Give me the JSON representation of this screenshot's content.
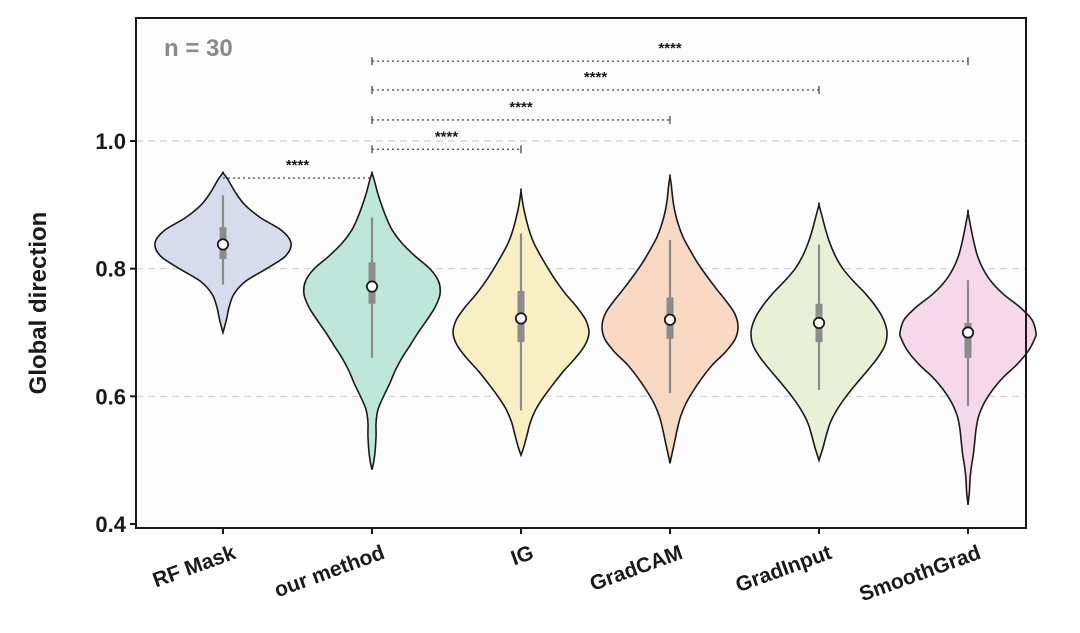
{
  "chart_data": {
    "type": "violin",
    "title": "",
    "xlabel": "",
    "ylabel": "Global direction",
    "ylim": [
      0.4,
      1.2
    ],
    "yticks": [
      0.4,
      0.6,
      0.8,
      1.0
    ],
    "ytick_labels": [
      "0.4",
      "0.6",
      "0.8",
      "1.0"
    ],
    "grid": "horizontal-dashed",
    "annotation": "n = 30",
    "categories": [
      "RF Mask",
      "our method",
      "IG",
      "GradCAM",
      "GradInput",
      "SmoothGrad"
    ],
    "series": [
      {
        "name": "RF Mask",
        "color": "#d6dcec",
        "min": 0.7,
        "max": 0.95,
        "whisker_low": 0.775,
        "whisker_high": 0.915,
        "q1": 0.815,
        "q3": 0.865,
        "median": 0.838,
        "profile": [
          [
            0.7,
            0
          ],
          [
            0.72,
            0.05
          ],
          [
            0.74,
            0.09
          ],
          [
            0.76,
            0.16
          ],
          [
            0.78,
            0.33
          ],
          [
            0.8,
            0.64
          ],
          [
            0.82,
            0.92
          ],
          [
            0.84,
            1.0
          ],
          [
            0.86,
            0.86
          ],
          [
            0.88,
            0.55
          ],
          [
            0.9,
            0.32
          ],
          [
            0.92,
            0.18
          ],
          [
            0.94,
            0.07
          ],
          [
            0.95,
            0
          ]
        ]
      },
      {
        "name": "our method",
        "color": "#bfe6da",
        "min": 0.485,
        "max": 0.95,
        "whisker_low": 0.66,
        "whisker_high": 0.88,
        "q1": 0.745,
        "q3": 0.81,
        "median": 0.772,
        "profile": [
          [
            0.485,
            0
          ],
          [
            0.5,
            0.03
          ],
          [
            0.52,
            0.05
          ],
          [
            0.54,
            0.06
          ],
          [
            0.56,
            0.06
          ],
          [
            0.58,
            0.09
          ],
          [
            0.6,
            0.17
          ],
          [
            0.62,
            0.26
          ],
          [
            0.64,
            0.34
          ],
          [
            0.66,
            0.44
          ],
          [
            0.68,
            0.56
          ],
          [
            0.7,
            0.68
          ],
          [
            0.72,
            0.81
          ],
          [
            0.74,
            0.93
          ],
          [
            0.76,
            1.0
          ],
          [
            0.78,
            0.98
          ],
          [
            0.8,
            0.85
          ],
          [
            0.82,
            0.63
          ],
          [
            0.84,
            0.44
          ],
          [
            0.86,
            0.3
          ],
          [
            0.88,
            0.21
          ],
          [
            0.9,
            0.14
          ],
          [
            0.92,
            0.08
          ],
          [
            0.94,
            0.03
          ],
          [
            0.95,
            0
          ]
        ]
      },
      {
        "name": "IG",
        "color": "#f8efc4",
        "min": 0.508,
        "max": 0.922,
        "whisker_low": 0.578,
        "whisker_high": 0.855,
        "q1": 0.685,
        "q3": 0.765,
        "median": 0.722,
        "profile": [
          [
            0.508,
            0
          ],
          [
            0.52,
            0.04
          ],
          [
            0.54,
            0.09
          ],
          [
            0.56,
            0.14
          ],
          [
            0.58,
            0.22
          ],
          [
            0.6,
            0.34
          ],
          [
            0.62,
            0.48
          ],
          [
            0.64,
            0.63
          ],
          [
            0.66,
            0.8
          ],
          [
            0.68,
            0.94
          ],
          [
            0.7,
            1.0
          ],
          [
            0.72,
            0.95
          ],
          [
            0.74,
            0.82
          ],
          [
            0.76,
            0.66
          ],
          [
            0.78,
            0.52
          ],
          [
            0.8,
            0.4
          ],
          [
            0.82,
            0.29
          ],
          [
            0.84,
            0.19
          ],
          [
            0.86,
            0.12
          ],
          [
            0.88,
            0.07
          ],
          [
            0.9,
            0.03
          ],
          [
            0.922,
            0
          ]
        ]
      },
      {
        "name": "GradCAM",
        "color": "#f8d9c4",
        "min": 0.495,
        "max": 0.945,
        "whisker_low": 0.605,
        "whisker_high": 0.845,
        "q1": 0.69,
        "q3": 0.755,
        "median": 0.72,
        "profile": [
          [
            0.495,
            0
          ],
          [
            0.51,
            0.03
          ],
          [
            0.53,
            0.07
          ],
          [
            0.55,
            0.11
          ],
          [
            0.57,
            0.16
          ],
          [
            0.59,
            0.24
          ],
          [
            0.61,
            0.35
          ],
          [
            0.63,
            0.48
          ],
          [
            0.65,
            0.63
          ],
          [
            0.67,
            0.82
          ],
          [
            0.69,
            0.96
          ],
          [
            0.71,
            1.0
          ],
          [
            0.73,
            0.95
          ],
          [
            0.75,
            0.82
          ],
          [
            0.77,
            0.67
          ],
          [
            0.79,
            0.53
          ],
          [
            0.81,
            0.4
          ],
          [
            0.83,
            0.29
          ],
          [
            0.85,
            0.19
          ],
          [
            0.87,
            0.12
          ],
          [
            0.89,
            0.07
          ],
          [
            0.91,
            0.04
          ],
          [
            0.93,
            0.02
          ],
          [
            0.945,
            0
          ]
        ]
      },
      {
        "name": "GradInput",
        "color": "#e8f1d7",
        "min": 0.5,
        "max": 0.9,
        "whisker_low": 0.61,
        "whisker_high": 0.838,
        "q1": 0.685,
        "q3": 0.745,
        "median": 0.715,
        "profile": [
          [
            0.5,
            0
          ],
          [
            0.52,
            0.06
          ],
          [
            0.54,
            0.11
          ],
          [
            0.56,
            0.17
          ],
          [
            0.58,
            0.27
          ],
          [
            0.6,
            0.4
          ],
          [
            0.62,
            0.55
          ],
          [
            0.64,
            0.71
          ],
          [
            0.66,
            0.86
          ],
          [
            0.68,
            0.97
          ],
          [
            0.7,
            1.0
          ],
          [
            0.72,
            0.95
          ],
          [
            0.74,
            0.84
          ],
          [
            0.76,
            0.69
          ],
          [
            0.78,
            0.51
          ],
          [
            0.8,
            0.35
          ],
          [
            0.82,
            0.24
          ],
          [
            0.84,
            0.16
          ],
          [
            0.86,
            0.1
          ],
          [
            0.88,
            0.05
          ],
          [
            0.9,
            0
          ]
        ]
      },
      {
        "name": "SmoothGrad",
        "color": "#f5d9eb",
        "min": 0.43,
        "max": 0.888,
        "whisker_low": 0.585,
        "whisker_high": 0.782,
        "q1": 0.66,
        "q3": 0.715,
        "median": 0.7,
        "profile": [
          [
            0.43,
            0
          ],
          [
            0.45,
            0.02
          ],
          [
            0.47,
            0.03
          ],
          [
            0.49,
            0.05
          ],
          [
            0.51,
            0.08
          ],
          [
            0.53,
            0.1
          ],
          [
            0.55,
            0.12
          ],
          [
            0.57,
            0.16
          ],
          [
            0.59,
            0.24
          ],
          [
            0.61,
            0.36
          ],
          [
            0.63,
            0.52
          ],
          [
            0.65,
            0.72
          ],
          [
            0.67,
            0.88
          ],
          [
            0.69,
            0.98
          ],
          [
            0.7,
            1.0
          ],
          [
            0.72,
            0.94
          ],
          [
            0.74,
            0.76
          ],
          [
            0.76,
            0.52
          ],
          [
            0.78,
            0.34
          ],
          [
            0.8,
            0.22
          ],
          [
            0.82,
            0.14
          ],
          [
            0.84,
            0.09
          ],
          [
            0.86,
            0.05
          ],
          [
            0.888,
            0
          ]
        ]
      }
    ],
    "significance": [
      {
        "from": "RF Mask",
        "to": "our method",
        "y": 0.942,
        "label": "****"
      },
      {
        "from": "our method",
        "to": "IG",
        "y": 0.987,
        "label": "****"
      },
      {
        "from": "our method",
        "to": "GradCAM",
        "y": 1.033,
        "label": "****"
      },
      {
        "from": "our method",
        "to": "GradInput",
        "y": 1.08,
        "label": "****"
      },
      {
        "from": "our method",
        "to": "SmoothGrad",
        "y": 1.125,
        "label": "****"
      }
    ]
  }
}
